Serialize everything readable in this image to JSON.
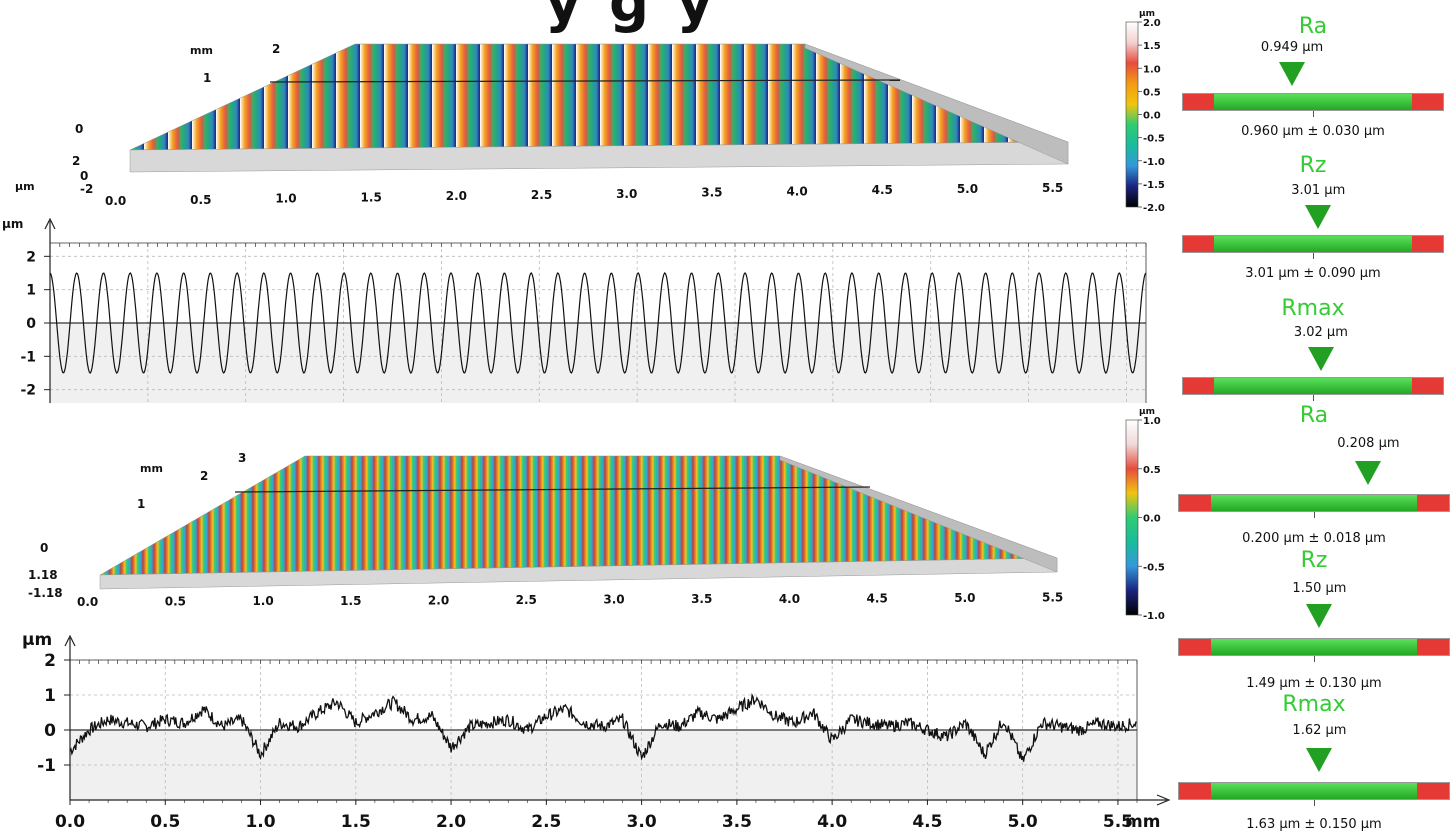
{
  "header_partial_title": "y   g   y",
  "colorbar_top": {
    "unit": "µm",
    "ticks": [
      "2.0",
      "1.5",
      "1.0",
      "0.5",
      "0.0",
      "-0.5",
      "-1.0",
      "-1.5",
      "-2.0"
    ]
  },
  "colorbar_bottom": {
    "unit": "µm",
    "ticks": [
      "1.0",
      "0.5",
      "0.0",
      "-0.5",
      "-1.0"
    ]
  },
  "surface_top": {
    "x_ticks": [
      "0.0",
      "0.5",
      "1.0",
      "1.5",
      "2.0",
      "2.5",
      "3.0",
      "3.5",
      "4.0",
      "4.5",
      "5.0",
      "5.5"
    ],
    "y_ticks": [
      "0",
      "1",
      "2"
    ],
    "y_unit": "mm",
    "z_ticks": [
      "2",
      "0",
      "-2"
    ],
    "z_unit": "µm"
  },
  "surface_bottom": {
    "x_ticks": [
      "0.0",
      "0.5",
      "1.0",
      "1.5",
      "2.0",
      "2.5",
      "3.0",
      "3.5",
      "4.0",
      "4.5",
      "5.0",
      "5.5"
    ],
    "y_ticks": [
      "0",
      "1",
      "2",
      "3"
    ],
    "y_unit": "mm",
    "z_ticks": [
      "1.18",
      "-1.18"
    ]
  },
  "gauges": [
    {
      "title": "Ra",
      "value": "0.949 µm",
      "tolerance": "0.960 µm ± 0.030 µm",
      "marker_fraction": 0.42
    },
    {
      "title": "Rz",
      "value": "3.01 µm",
      "tolerance": "3.01 µm ± 0.090 µm",
      "marker_fraction": 0.52
    },
    {
      "title": "Rmax",
      "value": "3.02 µm",
      "tolerance": "",
      "marker_fraction": 0.53
    },
    {
      "title": "Ra",
      "value": "0.208 µm",
      "tolerance": "0.200 µm ± 0.018 µm",
      "marker_fraction": 0.7
    },
    {
      "title": "Rz",
      "value": "1.50 µm",
      "tolerance": "1.49 µm ± 0.130 µm",
      "marker_fraction": 0.52
    },
    {
      "title": "Rmax",
      "value": "1.62 µm",
      "tolerance": "1.63 µm ± 0.150 µm",
      "marker_fraction": 0.52
    }
  ],
  "chart_data": [
    {
      "type": "line",
      "ylabel": "µm",
      "xlim": [
        0,
        5.6
      ],
      "ylim": [
        -2.4,
        2.4
      ],
      "y_ticks": [
        2,
        1,
        0,
        -1,
        -2
      ],
      "grid": true,
      "series": [
        {
          "function": "sine",
          "amplitude": 1.5,
          "cycles": 41,
          "phase_deg": 90
        }
      ]
    },
    {
      "type": "line",
      "xlabel": "mm",
      "ylabel": "µm",
      "xlim": [
        0,
        5.6
      ],
      "ylim": [
        -2,
        2
      ],
      "x_ticks": [
        "0.0",
        "0.5",
        "1.0",
        "1.5",
        "2.0",
        "2.5",
        "3.0",
        "3.5",
        "4.0",
        "4.5",
        "5.0",
        "5.5"
      ],
      "y_ticks": [
        2,
        1,
        0,
        -1
      ],
      "grid": true,
      "series": [
        {
          "x": [
            0.0,
            0.1,
            0.2,
            0.3,
            0.4,
            0.5,
            0.6,
            0.7,
            0.8,
            0.9,
            1.0,
            1.1,
            1.2,
            1.3,
            1.4,
            1.5,
            1.6,
            1.7,
            1.8,
            1.9,
            2.0,
            2.1,
            2.2,
            2.3,
            2.4,
            2.5,
            2.6,
            2.7,
            2.8,
            2.9,
            3.0,
            3.1,
            3.2,
            3.3,
            3.4,
            3.5,
            3.6,
            3.7,
            3.8,
            3.9,
            4.0,
            4.1,
            4.2,
            4.3,
            4.4,
            4.5,
            4.6,
            4.7,
            4.8,
            4.9,
            5.0,
            5.1,
            5.2,
            5.3,
            5.4,
            5.5,
            5.6
          ],
          "y": [
            -0.6,
            0.0,
            0.3,
            0.2,
            0.1,
            0.3,
            0.2,
            0.6,
            0.1,
            0.3,
            -0.7,
            0.2,
            0.1,
            0.5,
            0.8,
            0.2,
            0.5,
            0.8,
            0.3,
            0.4,
            -0.5,
            0.1,
            0.2,
            0.3,
            0.0,
            0.4,
            0.6,
            0.2,
            0.1,
            0.3,
            -0.8,
            0.2,
            0.1,
            0.5,
            0.3,
            0.6,
            0.9,
            0.4,
            0.2,
            0.5,
            -0.3,
            0.3,
            0.2,
            0.1,
            0.2,
            0.0,
            -0.2,
            0.2,
            -0.7,
            0.3,
            -0.9,
            0.2,
            0.1,
            0.0,
            0.2,
            0.1,
            0.2
          ]
        }
      ]
    }
  ]
}
